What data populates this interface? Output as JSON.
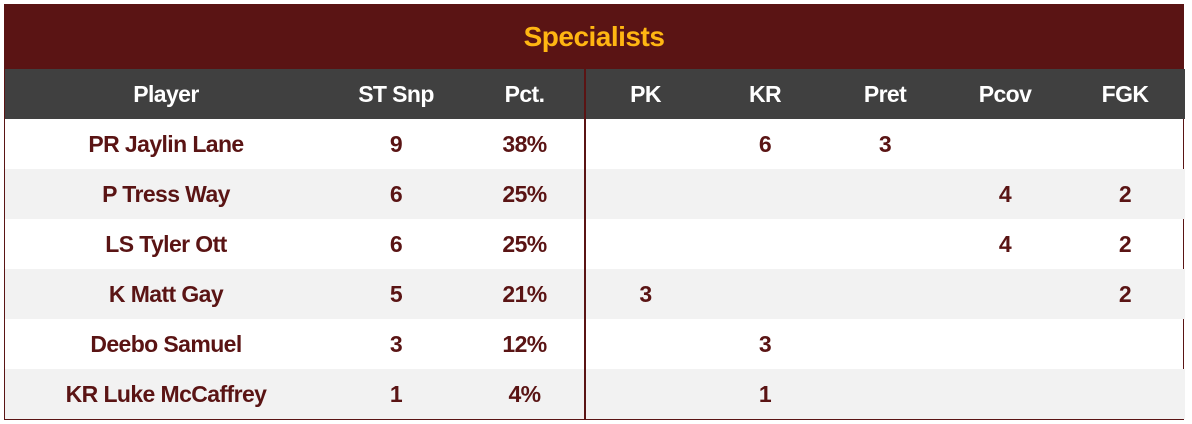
{
  "title": "Specialists",
  "columns": [
    "Player",
    "ST Snp",
    "Pct.",
    "PK",
    "KR",
    "Pret",
    "Pcov",
    "FGK"
  ],
  "rows": [
    [
      "PR Jaylin Lane",
      "9",
      "38%",
      "",
      "6",
      "3",
      "",
      ""
    ],
    [
      "P Tress Way",
      "6",
      "25%",
      "",
      "",
      "",
      "4",
      "2"
    ],
    [
      "LS Tyler Ott",
      "6",
      "25%",
      "",
      "",
      "",
      "4",
      "2"
    ],
    [
      "K Matt Gay",
      "5",
      "21%",
      "3",
      "",
      "",
      "",
      "2"
    ],
    [
      "Deebo Samuel",
      "3",
      "12%",
      "",
      "3",
      "",
      "",
      ""
    ],
    [
      "KR Luke McCaffrey",
      "1",
      "4%",
      "",
      "1",
      "",
      "",
      ""
    ]
  ],
  "colors": {
    "title_bg": "#5a1414",
    "title_text": "#ffb612",
    "header_bg": "#404040",
    "cell_text": "#5a1414",
    "alt_row": "#f2f2f2"
  }
}
